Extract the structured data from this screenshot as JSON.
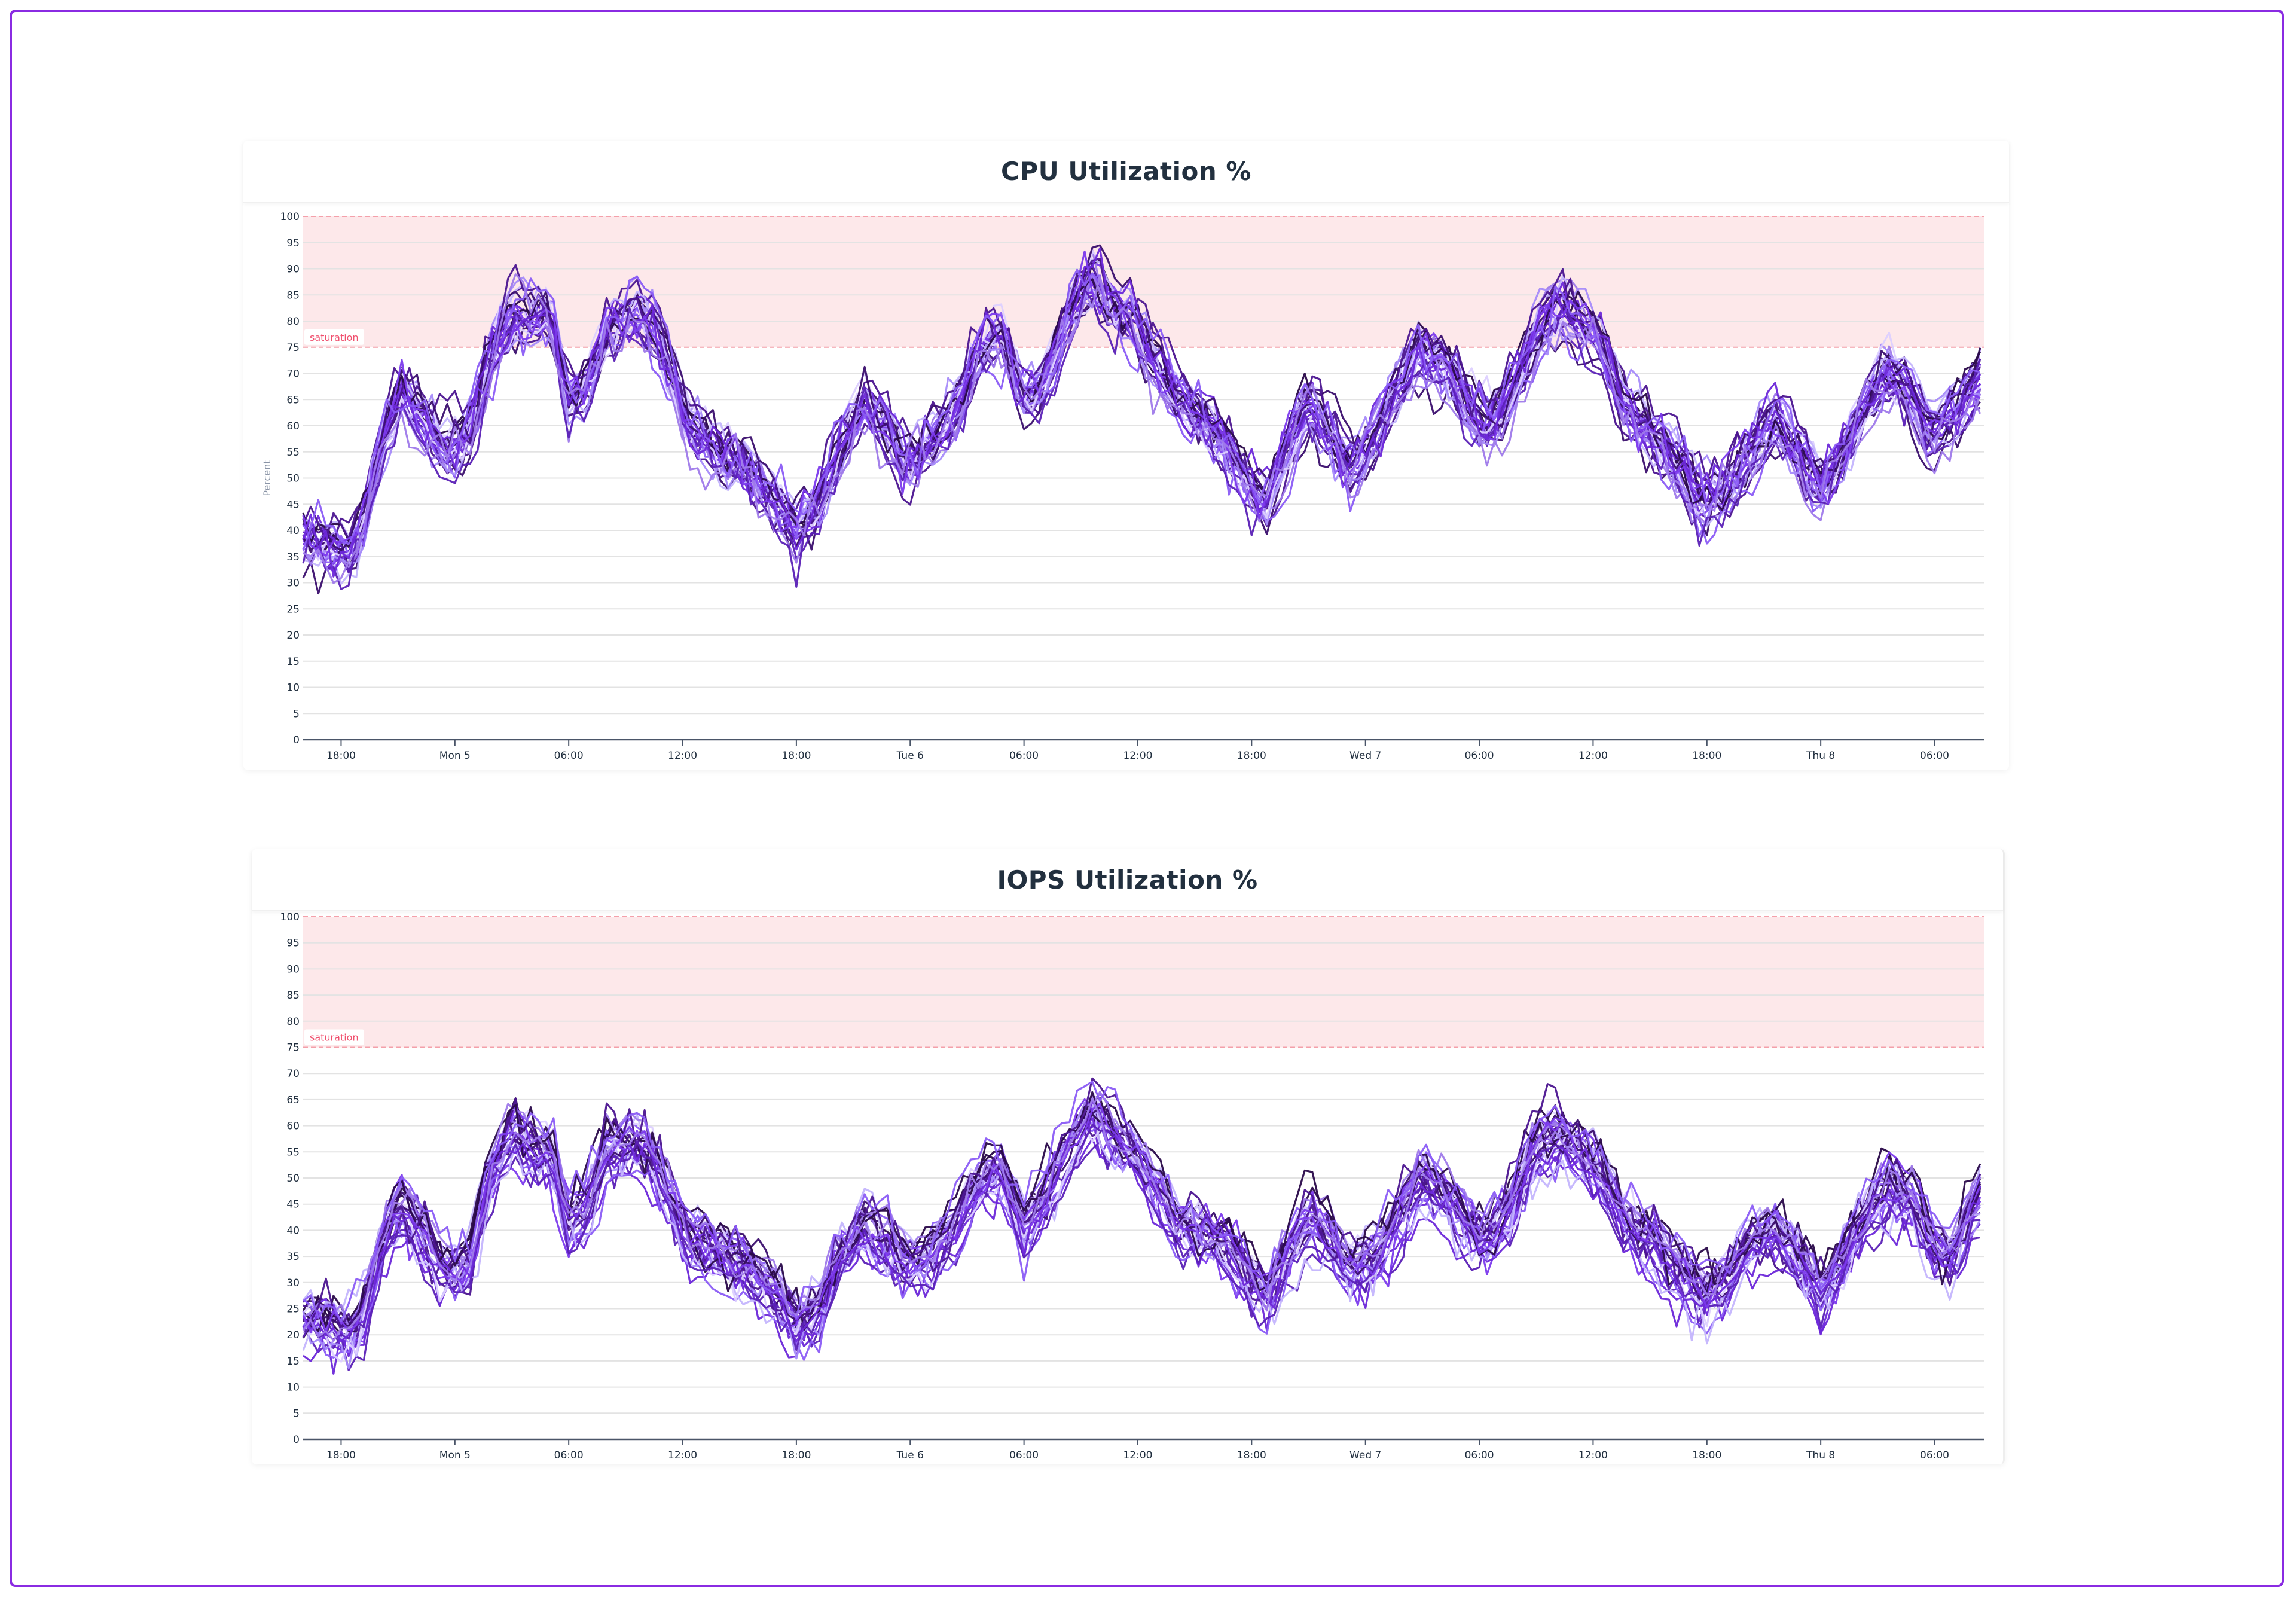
{
  "palette": [
    "#2a0a4a",
    "#3b0f6e",
    "#4c1590",
    "#5b21b6",
    "#6d28d9",
    "#7c3aed",
    "#8b5cf6",
    "#9f7aea",
    "#a78bfa",
    "#c4b5fd",
    "#ddd0ff"
  ],
  "band_fill": "#fde8ea",
  "band_line": "#f4a0aa",
  "chart_data": [
    {
      "type": "line",
      "title": "CPU Utilization %",
      "ylabel": "Percent",
      "ylim": [
        0,
        100
      ],
      "yticks": [
        0,
        5,
        10,
        15,
        20,
        25,
        30,
        35,
        40,
        45,
        50,
        55,
        60,
        65,
        70,
        75,
        80,
        85,
        90,
        95,
        100
      ],
      "xlim": [
        "Sun 4 16:00",
        "Thu 8 08:36"
      ],
      "xticks": [
        {
          "t": "Sun 4 18:00",
          "label": "18:00"
        },
        {
          "t": "Mon 5 00:00",
          "label": "Mon 5"
        },
        {
          "t": "Mon 5 06:00",
          "label": "06:00"
        },
        {
          "t": "Mon 5 12:00",
          "label": "12:00"
        },
        {
          "t": "Mon 5 18:00",
          "label": "18:00"
        },
        {
          "t": "Tue 6 00:00",
          "label": "Tue 6"
        },
        {
          "t": "Tue 6 06:00",
          "label": "06:00"
        },
        {
          "t": "Tue 6 12:00",
          "label": "12:00"
        },
        {
          "t": "Tue 6 18:00",
          "label": "18:00"
        },
        {
          "t": "Wed 7 00:00",
          "label": "Wed 7"
        },
        {
          "t": "Wed 7 06:00",
          "label": "06:00"
        },
        {
          "t": "Wed 7 12:00",
          "label": "12:00"
        },
        {
          "t": "Wed 7 18:00",
          "label": "18:00"
        },
        {
          "t": "Thu 8 00:00",
          "label": "Thu 8"
        },
        {
          "t": "Thu 8 06:00",
          "label": "06:00"
        }
      ],
      "band": {
        "from": 75,
        "to": 100,
        "label": "saturation"
      },
      "series_count": 30,
      "series_center": [
        [
          "Sun 4 16:00",
          38
        ],
        [
          "Sun 4 17:00",
          38
        ],
        [
          "Sun 4 18:30",
          35
        ],
        [
          "Sun 4 19:15",
          42
        ],
        [
          "Sun 4 20:15",
          58
        ],
        [
          "Sun 4 21:15",
          67
        ],
        [
          "Sun 4 22:30",
          60
        ],
        [
          "Sun 4 23:30",
          55
        ],
        [
          "Mon 5 00:45",
          58
        ],
        [
          "Mon 5 01:45",
          72
        ],
        [
          "Mon 5 03:00",
          82
        ],
        [
          "Mon 5 04:15",
          80
        ],
        [
          "Mon 5 05:00",
          83
        ],
        [
          "Mon 5 06:00",
          65
        ],
        [
          "Mon 5 07:00",
          68
        ],
        [
          "Mon 5 08:00",
          78
        ],
        [
          "Mon 5 09:15",
          82
        ],
        [
          "Mon 5 10:15",
          80
        ],
        [
          "Mon 5 11:30",
          70
        ],
        [
          "Mon 5 12:15",
          60
        ],
        [
          "Mon 5 13:45",
          55
        ],
        [
          "Mon 5 15:15",
          52
        ],
        [
          "Mon 5 17:00",
          45
        ],
        [
          "Mon 5 18:00",
          40
        ],
        [
          "Mon 5 19:15",
          45
        ],
        [
          "Mon 5 20:15",
          55
        ],
        [
          "Mon 5 21:30",
          65
        ],
        [
          "Mon 5 22:45",
          60
        ],
        [
          "Mon 5 23:45",
          52
        ],
        [
          "Tue 6 01:00",
          57
        ],
        [
          "Tue 6 02:15",
          62
        ],
        [
          "Tue 6 03:45",
          75
        ],
        [
          "Tue 6 04:45",
          78
        ],
        [
          "Tue 6 06:00",
          65
        ],
        [
          "Tue 6 07:00",
          68
        ],
        [
          "Tue 6 08:15",
          80
        ],
        [
          "Tue 6 09:30",
          88
        ],
        [
          "Tue 6 10:45",
          83
        ],
        [
          "Tue 6 11:45",
          80
        ],
        [
          "Tue 6 13:00",
          72
        ],
        [
          "Tue 6 14:00",
          65
        ],
        [
          "Tue 6 15:15",
          62
        ],
        [
          "Tue 6 16:30",
          57
        ],
        [
          "Tue 6 17:30",
          50
        ],
        [
          "Tue 6 18:45",
          45
        ],
        [
          "Tue 6 19:45",
          55
        ],
        [
          "Tue 6 21:00",
          65
        ],
        [
          "Tue 6 22:15",
          58
        ],
        [
          "Tue 6 23:15",
          52
        ],
        [
          "Wed 7 00:30",
          58
        ],
        [
          "Wed 7 01:45",
          68
        ],
        [
          "Wed 7 02:45",
          75
        ],
        [
          "Wed 7 04:00",
          72
        ],
        [
          "Wed 7 05:15",
          65
        ],
        [
          "Wed 7 06:15",
          60
        ],
        [
          "Wed 7 07:30",
          65
        ],
        [
          "Wed 7 09:00",
          78
        ],
        [
          "Wed 7 10:15",
          83
        ],
        [
          "Wed 7 11:15",
          80
        ],
        [
          "Wed 7 12:30",
          75
        ],
        [
          "Wed 7 13:30",
          65
        ],
        [
          "Wed 7 15:15",
          58
        ],
        [
          "Wed 7 16:45",
          52
        ],
        [
          "Wed 7 17:45",
          45
        ],
        [
          "Wed 7 19:00",
          48
        ],
        [
          "Wed 7 20:15",
          55
        ],
        [
          "Wed 7 21:45",
          62
        ],
        [
          "Wed 7 22:45",
          55
        ],
        [
          "Thu 8 00:00",
          48
        ],
        [
          "Thu 8 01:15",
          55
        ],
        [
          "Thu 8 02:15",
          63
        ],
        [
          "Thu 8 03:30",
          70
        ],
        [
          "Thu 8 04:45",
          67
        ],
        [
          "Thu 8 05:45",
          58
        ],
        [
          "Thu 8 07:00",
          62
        ],
        [
          "Thu 8 08:30",
          70
        ]
      ]
    },
    {
      "type": "line",
      "title": "IOPS Utilization %",
      "ylim": [
        0,
        100
      ],
      "yticks": [
        0,
        5,
        10,
        15,
        20,
        25,
        30,
        35,
        40,
        45,
        50,
        55,
        60,
        65,
        70,
        75,
        80,
        85,
        90,
        95,
        100
      ],
      "xlim": [
        "Sun 4 16:00",
        "Thu 8 08:36"
      ],
      "xticks": [
        {
          "t": "Sun 4 18:00",
          "label": "18:00"
        },
        {
          "t": "Mon 5 00:00",
          "label": "Mon 5"
        },
        {
          "t": "Mon 5 06:00",
          "label": "06:00"
        },
        {
          "t": "Mon 5 12:00",
          "label": "12:00"
        },
        {
          "t": "Mon 5 18:00",
          "label": "18:00"
        },
        {
          "t": "Tue 6 00:00",
          "label": "Tue 6"
        },
        {
          "t": "Tue 6 06:00",
          "label": "06:00"
        },
        {
          "t": "Tue 6 12:00",
          "label": "12:00"
        },
        {
          "t": "Tue 6 18:00",
          "label": "18:00"
        },
        {
          "t": "Wed 7 00:00",
          "label": "Wed 7"
        },
        {
          "t": "Wed 7 06:00",
          "label": "06:00"
        },
        {
          "t": "Wed 7 12:00",
          "label": "12:00"
        },
        {
          "t": "Wed 7 18:00",
          "label": "18:00"
        },
        {
          "t": "Thu 8 00:00",
          "label": "Thu 8"
        },
        {
          "t": "Thu 8 06:00",
          "label": "06:00"
        }
      ],
      "band": {
        "from": 75,
        "to": 100,
        "label": "saturation"
      },
      "series_count": 30,
      "series_center": [
        [
          "Sun 4 16:00",
          22
        ],
        [
          "Sun 4 17:00",
          22
        ],
        [
          "Sun 4 18:30",
          20
        ],
        [
          "Sun 4 19:15",
          25
        ],
        [
          "Sun 4 20:15",
          40
        ],
        [
          "Sun 4 21:15",
          45
        ],
        [
          "Sun 4 22:30",
          38
        ],
        [
          "Sun 4 23:30",
          32
        ],
        [
          "Mon 5 00:45",
          33
        ],
        [
          "Mon 5 01:45",
          50
        ],
        [
          "Mon 5 03:00",
          60
        ],
        [
          "Mon 5 04:15",
          55
        ],
        [
          "Mon 5 05:00",
          55
        ],
        [
          "Mon 5 06:00",
          42
        ],
        [
          "Mon 5 07:00",
          45
        ],
        [
          "Mon 5 08:00",
          55
        ],
        [
          "Mon 5 09:15",
          57
        ],
        [
          "Mon 5 10:15",
          55
        ],
        [
          "Mon 5 11:30",
          45
        ],
        [
          "Mon 5 12:15",
          38
        ],
        [
          "Mon 5 13:45",
          36
        ],
        [
          "Mon 5 15:15",
          33
        ],
        [
          "Mon 5 17:00",
          28
        ],
        [
          "Mon 5 18:00",
          22
        ],
        [
          "Mon 5 19:15",
          25
        ],
        [
          "Mon 5 20:15",
          35
        ],
        [
          "Mon 5 21:30",
          40
        ],
        [
          "Mon 5 22:45",
          38
        ],
        [
          "Mon 5 23:45",
          33
        ],
        [
          "Tue 6 01:00",
          35
        ],
        [
          "Tue 6 02:15",
          40
        ],
        [
          "Tue 6 03:45",
          50
        ],
        [
          "Tue 6 04:45",
          52
        ],
        [
          "Tue 6 06:00",
          40
        ],
        [
          "Tue 6 07:00",
          45
        ],
        [
          "Tue 6 08:15",
          55
        ],
        [
          "Tue 6 09:30",
          62
        ],
        [
          "Tue 6 10:45",
          58
        ],
        [
          "Tue 6 11:45",
          55
        ],
        [
          "Tue 6 13:00",
          48
        ],
        [
          "Tue 6 14:00",
          42
        ],
        [
          "Tue 6 15:15",
          40
        ],
        [
          "Tue 6 16:30",
          38
        ],
        [
          "Tue 6 17:30",
          33
        ],
        [
          "Tue 6 18:45",
          27
        ],
        [
          "Tue 6 19:45",
          35
        ],
        [
          "Tue 6 21:00",
          42
        ],
        [
          "Tue 6 22:15",
          38
        ],
        [
          "Tue 6 23:15",
          33
        ],
        [
          "Wed 7 00:30",
          35
        ],
        [
          "Wed 7 01:45",
          42
        ],
        [
          "Wed 7 02:45",
          50
        ],
        [
          "Wed 7 04:00",
          48
        ],
        [
          "Wed 7 05:15",
          42
        ],
        [
          "Wed 7 06:15",
          38
        ],
        [
          "Wed 7 07:30",
          43
        ],
        [
          "Wed 7 09:00",
          55
        ],
        [
          "Wed 7 10:15",
          58
        ],
        [
          "Wed 7 11:15",
          55
        ],
        [
          "Wed 7 12:30",
          50
        ],
        [
          "Wed 7 13:30",
          42
        ],
        [
          "Wed 7 15:15",
          38
        ],
        [
          "Wed 7 16:45",
          32
        ],
        [
          "Wed 7 17:45",
          27
        ],
        [
          "Wed 7 19:00",
          30
        ],
        [
          "Wed 7 20:15",
          38
        ],
        [
          "Wed 7 21:45",
          40
        ],
        [
          "Wed 7 22:45",
          35
        ],
        [
          "Thu 8 00:00",
          28
        ],
        [
          "Thu 8 01:15",
          35
        ],
        [
          "Thu 8 02:15",
          42
        ],
        [
          "Thu 8 03:30",
          48
        ],
        [
          "Thu 8 04:45",
          47
        ],
        [
          "Thu 8 05:45",
          38
        ],
        [
          "Thu 8 07:00",
          35
        ],
        [
          "Thu 8 08:30",
          48
        ]
      ]
    }
  ]
}
